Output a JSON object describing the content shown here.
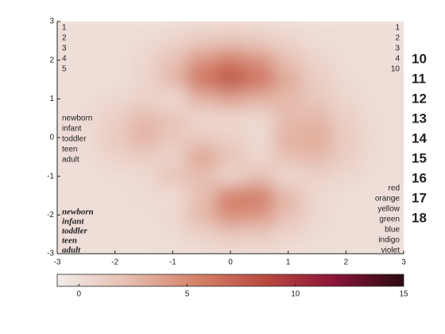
{
  "chart_data": {
    "type": "heatmap",
    "x": [
      -3,
      -2.5,
      -2,
      -1.5,
      -1,
      -0.5,
      0,
      0.5,
      1,
      1.5,
      2,
      2.5,
      3
    ],
    "y": [
      -3,
      -2.5,
      -2,
      -1.5,
      -1,
      -0.5,
      0,
      0.5,
      1,
      1.5,
      2,
      2.5,
      3
    ],
    "z": [
      [
        0,
        0,
        0,
        0,
        0.03,
        0.14,
        0.24,
        0.22,
        0.11,
        0.03,
        0.01,
        0,
        0
      ],
      [
        0,
        0,
        0.02,
        0,
        0.23,
        0.91,
        1.57,
        1.41,
        0.69,
        0.19,
        0.03,
        0,
        0
      ],
      [
        0,
        0.01,
        0.05,
        0.05,
        0.59,
        2.63,
        4.75,
        4.34,
        2.1,
        0.53,
        0.06,
        0.01,
        0
      ],
      [
        0,
        0.01,
        0.08,
        0.33,
        0.15,
        2.19,
        5.68,
        5.76,
        2.63,
        0.44,
        0.04,
        0.03,
        0
      ],
      [
        0.01,
        0.06,
        0.13,
        0.3,
        1.86,
        2.22,
        0.72,
        2.22,
        0.27,
        0.88,
        0.5,
        0.11,
        0.01
      ],
      [
        0.03,
        0.2,
        0.8,
        1.21,
        0.8,
        3.55,
        2,
        0.39,
        2.2,
        2.56,
        1.12,
        0.24,
        0.03
      ],
      [
        0.04,
        0.3,
        1.33,
        2.77,
        1.65,
        1.48,
        0.98,
        0.38,
        2.94,
        3.27,
        1.41,
        0.3,
        0.03
      ],
      [
        0.03,
        0.25,
        1.12,
        2.49,
        2,
        0.39,
        0.46,
        0.38,
        2.38,
        2.56,
        1.09,
        0.23,
        0.03
      ],
      [
        0.01,
        0.11,
        0.48,
        0.87,
        0.23,
        2.79,
        3.69,
        2.94,
        2.43,
        1.58,
        0.58,
        0.11,
        0.01
      ],
      [
        0,
        0.02,
        0.01,
        0.48,
        2.61,
        6.2,
        8,
        6.25,
        3.26,
        1.19,
        0.29,
        0.05,
        0
      ],
      [
        0,
        0.01,
        0.08,
        0.55,
        2.1,
        4.55,
        5.85,
        4.56,
        2.21,
        0.68,
        0.13,
        0.02,
        0
      ],
      [
        0,
        0,
        0.03,
        0.19,
        0.69,
        1.47,
        1.89,
        1.47,
        0.7,
        0.21,
        0.04,
        0,
        0
      ],
      [
        0,
        0,
        0.01,
        0.03,
        0.11,
        0.23,
        0.3,
        0.23,
        0.11,
        0.03,
        0.01,
        0,
        0
      ]
    ],
    "xlim": [
      -3,
      3
    ],
    "ylim": [
      -3,
      3
    ],
    "xticks": [
      -3,
      -2,
      -1,
      0,
      1,
      2,
      3
    ],
    "yticks": [
      -3,
      -2,
      -1,
      0,
      1,
      2,
      3
    ],
    "clim": [
      -1,
      15
    ],
    "cticks": [
      0,
      5,
      10,
      15
    ],
    "colormap": [
      "#f2ecea",
      "#e6bfb1",
      "#d5826a",
      "#b94a3f",
      "#8a1538",
      "#2b0a12"
    ],
    "annotation_groups": [
      {
        "items": [
          {
            "text": "1",
            "color": "#6a3db8"
          },
          {
            "text": "2",
            "color": "#4a6ad0"
          },
          {
            "text": "3",
            "color": "#2aa8a8"
          },
          {
            "text": "4",
            "color": "#b8b040"
          },
          {
            "text": "5",
            "color": "#e8e040"
          }
        ]
      },
      {
        "items": [
          {
            "text": "1",
            "color": "#6a3db8"
          },
          {
            "text": "2",
            "color": "#4a6ad0"
          },
          {
            "text": "3",
            "color": "#2aa8a8"
          },
          {
            "text": "4",
            "color": "#b8b040"
          },
          {
            "text": "10",
            "color": "#e8e040"
          }
        ]
      },
      {
        "items": [
          {
            "text": "newborn",
            "color": "#5a2a9a"
          },
          {
            "text": "infant",
            "color": "#3a7ad0"
          },
          {
            "text": "toddler",
            "color": "#2aa8c0"
          },
          {
            "text": "teen",
            "color": "#c0b050"
          },
          {
            "text": "adult",
            "color": "#f0e040"
          }
        ]
      },
      {
        "items": [
          {
            "text": "newborn",
            "color": "#e0f0e0"
          },
          {
            "text": "infant",
            "color": "#a8d8a0"
          },
          {
            "text": "toddler",
            "color": "#40a040"
          },
          {
            "text": "teen",
            "color": "#106030"
          },
          {
            "text": "adult",
            "color": "#101010"
          }
        ]
      },
      {
        "items": [
          {
            "text": "red",
            "color": "#d01010"
          },
          {
            "text": "orange",
            "color": "#e08020"
          },
          {
            "text": "yellow",
            "color": "#e8e040"
          },
          {
            "text": "green",
            "color": "#20a020"
          },
          {
            "text": "blue",
            "color": "#2040e0"
          },
          {
            "text": "indigo",
            "color": "#401080"
          },
          {
            "text": "violet",
            "color": "#9010c0"
          }
        ]
      },
      {
        "items": [
          {
            "text": "10",
            "color": "#132a43"
          },
          {
            "text": "11",
            "color": "#1e2a66"
          },
          {
            "text": "12",
            "color": "#4b3191"
          },
          {
            "text": "13",
            "color": "#81489c"
          },
          {
            "text": "14",
            "color": "#b86a9e"
          },
          {
            "text": "15",
            "color": "#e36f72"
          },
          {
            "text": "16",
            "color": "#f39447"
          },
          {
            "text": "17",
            "color": "#f4c542"
          },
          {
            "text": "18",
            "color": "#f3f471"
          }
        ]
      }
    ]
  }
}
